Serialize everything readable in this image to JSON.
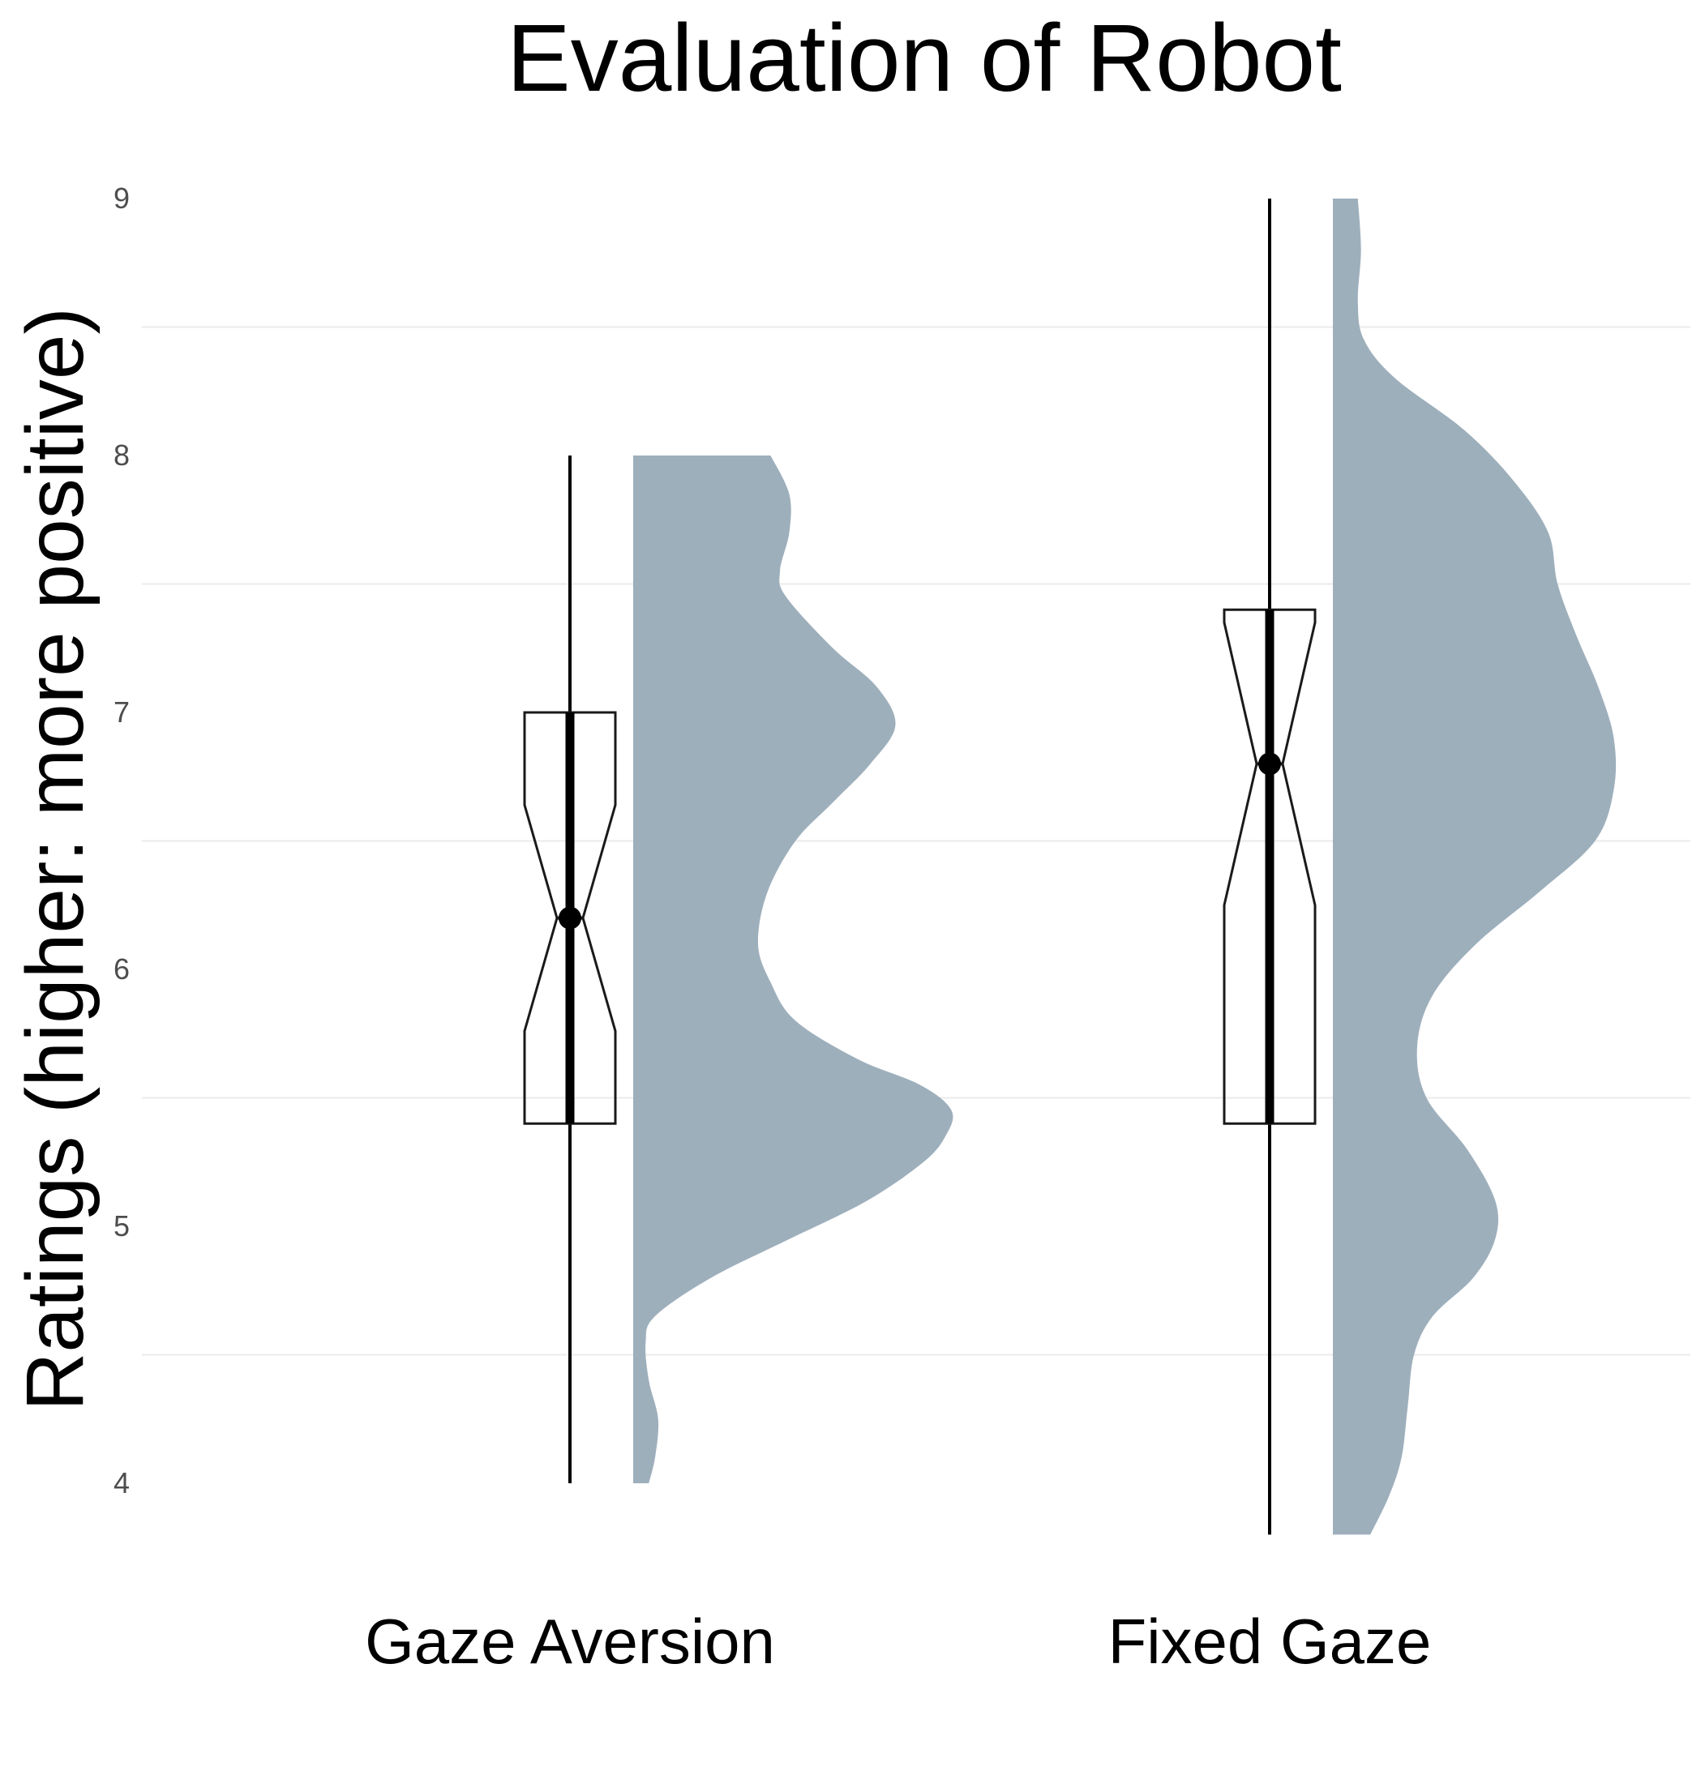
{
  "chart_data": {
    "type": "raincloud (half-violin + notched boxplot)",
    "title": "Evaluation of Robot",
    "xlabel": "",
    "ylabel": "Ratings (higher: more positive)",
    "ylim": [
      4,
      9
    ],
    "y_ticks": [
      "4",
      "5",
      "6",
      "7",
      "8",
      "9"
    ],
    "categories": [
      "Gaze Aversion",
      "Fixed Gaze"
    ],
    "grid": "horizontal minor gridlines only",
    "legend": "none",
    "colors": {
      "violin_fill": "#9eafbc",
      "box_stroke": "#1a1a1a",
      "whisker": "#000000",
      "gridline": "#ebebeb"
    },
    "series": [
      {
        "category": "Gaze Aversion",
        "box": {
          "min": 4.0,
          "q1": 5.4,
          "median": 6.2,
          "q3": 7.0,
          "max": 8.0,
          "notch_low": 5.76,
          "notch_high": 6.64
        },
        "summary_point": 6.2,
        "summary_interval": [
          5.4,
          7.0
        ],
        "density": [
          [
            4.0,
            0.05
          ],
          [
            4.1,
            0.07
          ],
          [
            4.25,
            0.08
          ],
          [
            4.4,
            0.05
          ],
          [
            4.55,
            0.04
          ],
          [
            4.65,
            0.07
          ],
          [
            4.8,
            0.25
          ],
          [
            4.95,
            0.5
          ],
          [
            5.1,
            0.75
          ],
          [
            5.25,
            0.93
          ],
          [
            5.35,
            1.0
          ],
          [
            5.45,
            1.02
          ],
          [
            5.55,
            0.92
          ],
          [
            5.65,
            0.72
          ],
          [
            5.8,
            0.52
          ],
          [
            5.95,
            0.44
          ],
          [
            6.1,
            0.4
          ],
          [
            6.3,
            0.43
          ],
          [
            6.5,
            0.52
          ],
          [
            6.65,
            0.64
          ],
          [
            6.8,
            0.76
          ],
          [
            6.95,
            0.84
          ],
          [
            7.1,
            0.78
          ],
          [
            7.25,
            0.64
          ],
          [
            7.45,
            0.49
          ],
          [
            7.55,
            0.47
          ],
          [
            7.7,
            0.5
          ],
          [
            7.85,
            0.5
          ],
          [
            8.0,
            0.44
          ]
        ]
      },
      {
        "category": "Fixed Gaze",
        "box": {
          "min": 3.8,
          "q1": 5.4,
          "median": 6.8,
          "q3": 7.4,
          "max": 9.0,
          "notch_low": 6.25,
          "notch_high": 7.35
        },
        "summary_point": 6.8,
        "summary_interval": [
          5.4,
          7.4
        ],
        "density": [
          [
            3.8,
            0.12
          ],
          [
            3.95,
            0.18
          ],
          [
            4.1,
            0.22
          ],
          [
            4.3,
            0.24
          ],
          [
            4.5,
            0.26
          ],
          [
            4.65,
            0.32
          ],
          [
            4.8,
            0.45
          ],
          [
            4.95,
            0.52
          ],
          [
            5.1,
            0.52
          ],
          [
            5.3,
            0.43
          ],
          [
            5.5,
            0.3
          ],
          [
            5.7,
            0.27
          ],
          [
            5.9,
            0.32
          ],
          [
            6.1,
            0.46
          ],
          [
            6.3,
            0.66
          ],
          [
            6.5,
            0.84
          ],
          [
            6.7,
            0.9
          ],
          [
            6.9,
            0.9
          ],
          [
            7.1,
            0.85
          ],
          [
            7.3,
            0.78
          ],
          [
            7.5,
            0.72
          ],
          [
            7.7,
            0.69
          ],
          [
            7.9,
            0.58
          ],
          [
            8.1,
            0.42
          ],
          [
            8.3,
            0.2
          ],
          [
            8.45,
            0.1
          ],
          [
            8.6,
            0.08
          ],
          [
            8.8,
            0.09
          ],
          [
            9.0,
            0.08
          ]
        ]
      }
    ]
  }
}
